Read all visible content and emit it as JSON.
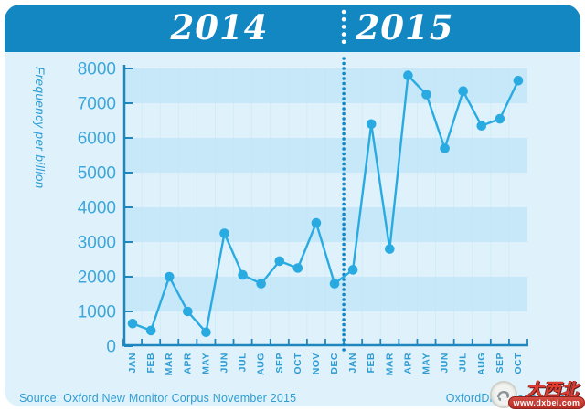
{
  "header": {
    "left_year": "2014",
    "right_year": "2015"
  },
  "footer": {
    "source": "Source: Oxford New Monitor Corpus November 2015",
    "brand": "OxfordDictionaries.com"
  },
  "watermark": {
    "site_name": "大西北",
    "url": "www.dxbei.com"
  },
  "colors": {
    "header_bg": "#1387C2",
    "card_bg": "#DFF2FB",
    "band_dark": "#C7E8F8",
    "vgrid": "#C2E3F3",
    "axis": "#1F86BE",
    "line": "#29ABE2",
    "point": "#29ABE2",
    "tick_text": "#3EA6DB",
    "month_text": "#2D9CD3",
    "separator_dots": "#1287C6",
    "header_dots": "#FFFFFF"
  },
  "chart_data": {
    "type": "line",
    "title": "",
    "xlabel": "",
    "ylabel": "Frequency per billion",
    "ylim": [
      0,
      8000
    ],
    "ytick_step": 1000,
    "yticks": [
      0,
      1000,
      2000,
      3000,
      4000,
      5000,
      6000,
      7000,
      8000
    ],
    "grid": "alternating horizontal bands every 1000, faint vertical month lines",
    "legend_position": "none",
    "separator_after_index": 11,
    "year_groups": [
      {
        "year": "2014",
        "months": [
          "JAN",
          "FEB",
          "MAR",
          "APR",
          "MAY",
          "JUN",
          "JUL",
          "AUG",
          "SEP",
          "OCT",
          "NOV",
          "DEC"
        ],
        "values": [
          650,
          450,
          2000,
          1000,
          400,
          3250,
          2050,
          1800,
          2450,
          2250,
          3550,
          1800
        ]
      },
      {
        "year": "2015",
        "months": [
          "JAN",
          "FEB",
          "MAR",
          "APR",
          "MAY",
          "JUN",
          "JUL",
          "AUG",
          "SEP",
          "OCT"
        ],
        "values": [
          2200,
          6400,
          2800,
          7800,
          7250,
          5700,
          7350,
          6350,
          6550,
          7650
        ]
      }
    ]
  }
}
